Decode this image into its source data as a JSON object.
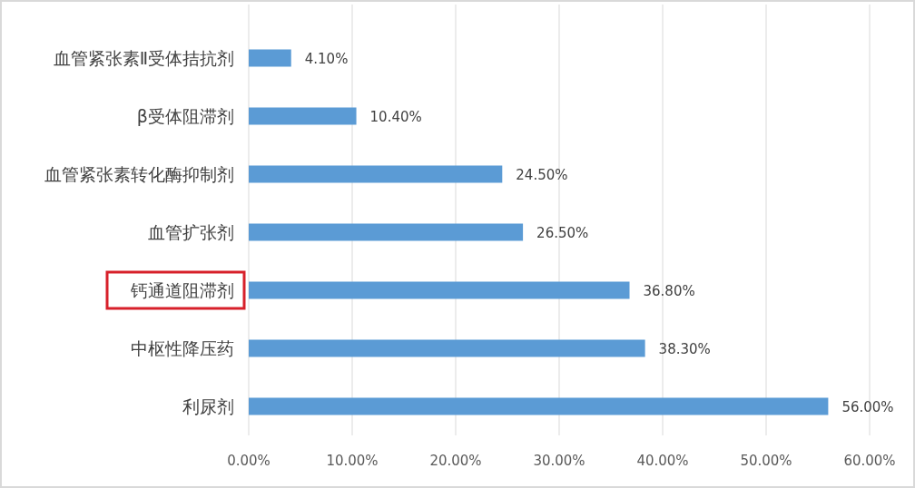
{
  "chart_data": {
    "type": "bar",
    "orientation": "horizontal",
    "categories": [
      "血管紧张素Ⅱ受体拮抗剂",
      "β受体阻滞剂",
      "血管紧张素转化酶抑制剂",
      "血管扩张剂",
      "钙通道阻滞剂",
      "中枢性降压药",
      "利尿剂"
    ],
    "values": [
      4.1,
      10.4,
      24.5,
      26.5,
      36.8,
      38.3,
      56.0
    ],
    "value_labels": [
      "4.10%",
      "10.40%",
      "24.50%",
      "26.50%",
      "36.80%",
      "38.30%",
      "56.00%"
    ],
    "color": "#5b9bd5",
    "xlim": [
      0,
      60
    ],
    "xticks": [
      {
        "value": 0,
        "label": "0.00%"
      },
      {
        "value": 10,
        "label": "10.00%"
      },
      {
        "value": 20,
        "label": "20.00%"
      },
      {
        "value": 30,
        "label": "30.00%"
      },
      {
        "value": 40,
        "label": "40.00%"
      },
      {
        "value": 50,
        "label": "50.00%"
      },
      {
        "value": 60,
        "label": "60.00%"
      }
    ],
    "grid": "x"
  }
}
